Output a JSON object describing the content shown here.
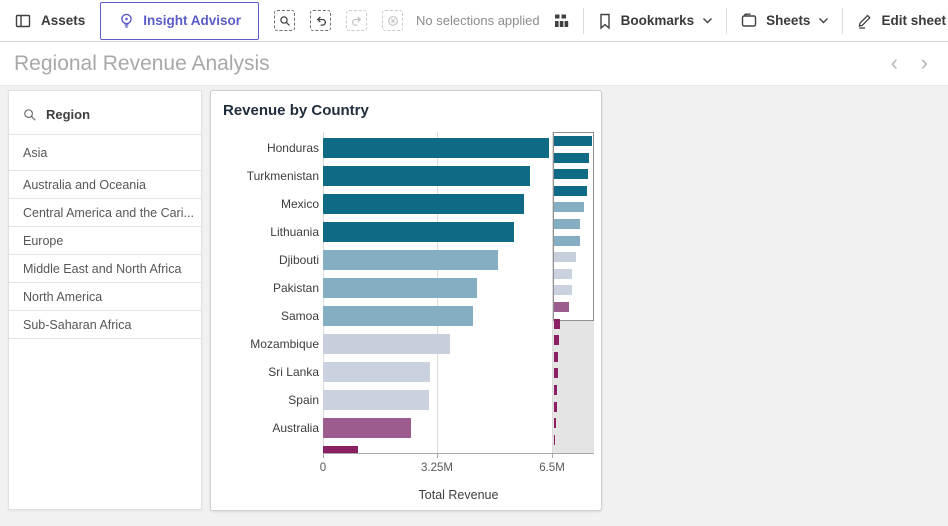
{
  "toolbar": {
    "assets_label": "Assets",
    "insight_advisor_label": "Insight Advisor",
    "selections_status": "No selections applied",
    "bookmarks_label": "Bookmarks",
    "sheets_label": "Sheets",
    "edit_sheet_label": "Edit sheet",
    "accent_color": "#5a5dc7"
  },
  "sheet": {
    "title": "Regional Revenue Analysis"
  },
  "icons": {
    "prev_chevron": "‹",
    "next_chevron": "›"
  },
  "filter_panel": {
    "title": "Region",
    "items": [
      "Asia",
      "Australia and Oceania",
      "Central America and the Cari...",
      "Europe",
      "Middle East and North Africa",
      "North America",
      "Sub-Saharan Africa"
    ]
  },
  "chart_data": {
    "type": "bar",
    "orientation": "horizontal",
    "title": "Revenue by Country",
    "xlabel": "Total Revenue",
    "x_ticks": [
      "0",
      "3.25M",
      "6.5M"
    ],
    "x_tick_values_m": [
      0,
      3.25,
      6.5
    ],
    "x_axis_max_m": 6.5,
    "grid": true,
    "categories": [
      "Honduras",
      "Turkmenistan",
      "Mexico",
      "Lithuania",
      "Djibouti",
      "Pakistan",
      "Samoa",
      "Mozambique",
      "Sri Lanka",
      "Spain",
      "Australia"
    ],
    "values_m": [
      6.4,
      5.88,
      5.7,
      5.42,
      4.97,
      4.37,
      4.26,
      3.6,
      3.04,
      3.02,
      2.5
    ],
    "bar_colors": [
      "#0e6a85",
      "#0e6a85",
      "#0e6a85",
      "#0e6a85",
      "#86aec2",
      "#86aec2",
      "#86aec2",
      "#c6cfdb",
      "#c9d2de",
      "#c9d2de",
      "#9d5c8e"
    ],
    "clipped_next_bar": {
      "value_m": 1.0,
      "color": "#8b2064"
    },
    "minimap": {
      "visible_rows": 11,
      "values_m": [
        6.4,
        5.88,
        5.7,
        5.42,
        4.97,
        4.37,
        4.26,
        3.6,
        3.04,
        3.02,
        2.5,
        0.95,
        0.8,
        0.7,
        0.65,
        0.55,
        0.45,
        0.33,
        0.15
      ],
      "colors": [
        "#0e6a85",
        "#0e6a85",
        "#0e6a85",
        "#0e6a85",
        "#86aec2",
        "#86aec2",
        "#86aec2",
        "#c6cfdb",
        "#c9d2de",
        "#c9d2de",
        "#9d5c8e",
        "#8b2064",
        "#8b2064",
        "#8b2064",
        "#8b2064",
        "#8b2064",
        "#8b2064",
        "#8b2064",
        "#8b2064"
      ]
    }
  }
}
